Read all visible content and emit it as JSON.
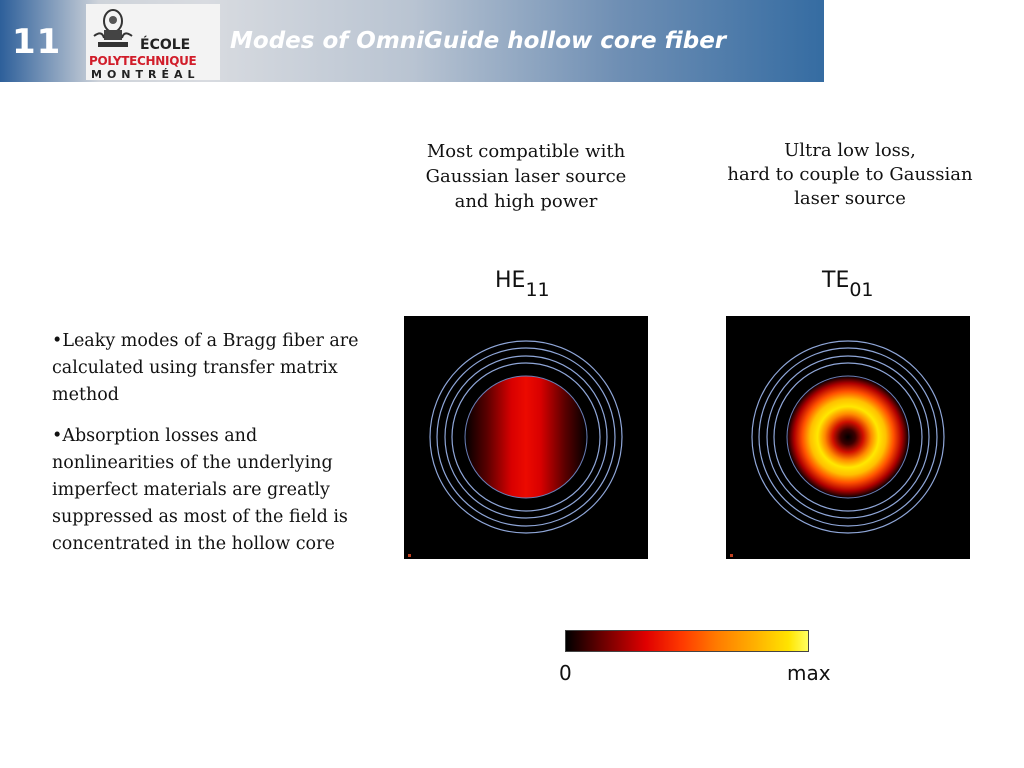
{
  "header": {
    "slide_number": "11",
    "title": "Modes of OmniGuide hollow core fiber"
  },
  "logo": {
    "line1": "ÉCOLE",
    "line2": "POLYTECHNIQUE",
    "line3": "MONTRÉAL"
  },
  "bullets": [
    "•Leaky modes of a Bragg fiber are calculated using transfer matrix method",
    "•Absorption losses and nonlinearities of the underlying imperfect materials are greatly suppressed as most of the field is concentrated in the hollow core"
  ],
  "modes": [
    {
      "caption_lines": [
        "Most compatible with",
        "Gaussian laser source",
        "and high power"
      ],
      "label_main": "HE",
      "label_sub": "11"
    },
    {
      "caption_lines": [
        "Ultra low loss,",
        "hard to couple to Gaussian",
        "laser source"
      ],
      "label_main": "TE",
      "label_sub": "01"
    }
  ],
  "colorbar": {
    "min_label": "0",
    "max_label": "max"
  },
  "colors": {
    "accent": "#356ca2",
    "brand_red": "#d11d2a",
    "cladding_rings": "#8fa6d8"
  }
}
